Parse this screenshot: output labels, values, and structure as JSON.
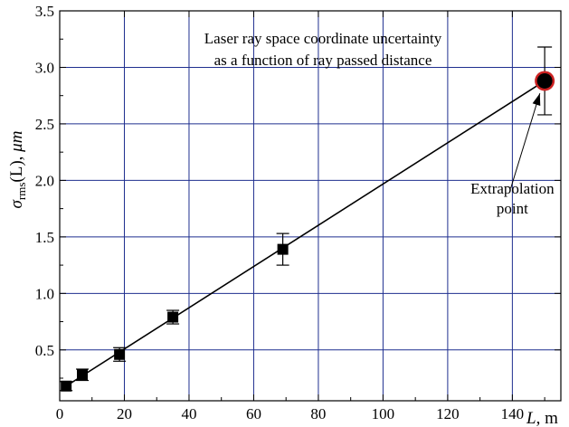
{
  "chart_data": {
    "type": "scatter",
    "title_lines": [
      "Laser ray space coordinate uncertainty",
      "as a function of ray passed distance"
    ],
    "xlabel": {
      "symbol": "L",
      "unit": ", m"
    },
    "ylabel": {
      "symbol": "σ",
      "subscript": "rms",
      "arg": "(L), ",
      "unit": "μm"
    },
    "xlim": [
      0,
      155
    ],
    "ylim": [
      0.05,
      3.5
    ],
    "x_ticks": [
      0,
      20,
      40,
      60,
      80,
      100,
      120,
      140
    ],
    "x_tick_labels": [
      "0",
      "20",
      "40",
      "60",
      "80",
      "100",
      "120",
      "140"
    ],
    "y_ticks": [
      0.5,
      1.0,
      1.5,
      2.0,
      2.5,
      3.0,
      3.5
    ],
    "y_tick_labels": [
      "0.5",
      "1.0",
      "1.5",
      "2.0",
      "2.5",
      "3.0",
      "3.5"
    ],
    "grid": true,
    "grid_color": "#1f2f8f",
    "series": [
      {
        "points": [
          {
            "x": 2,
            "y": 0.18,
            "err": 0.04
          },
          {
            "x": 7,
            "y": 0.28,
            "err": 0.05
          },
          {
            "x": 18.5,
            "y": 0.46,
            "err": 0.06
          },
          {
            "x": 35,
            "y": 0.79,
            "err": 0.06
          },
          {
            "x": 69,
            "y": 1.39,
            "err": 0.14
          }
        ]
      }
    ],
    "fit_line": {
      "x": [
        2,
        150
      ],
      "y": [
        0.18,
        2.88
      ]
    },
    "extrapolation_point": {
      "x": 150,
      "y": 2.88,
      "err": 0.3,
      "ring_color": "#cc2222"
    },
    "annotation": {
      "lines": [
        "Extrapolation",
        "point"
      ],
      "text_at": {
        "x": 140,
        "y": 1.69
      },
      "arrow_from": {
        "x": 139.5,
        "y": 1.93
      },
      "arrow_to": {
        "x": 148.5,
        "y": 2.77
      }
    }
  }
}
